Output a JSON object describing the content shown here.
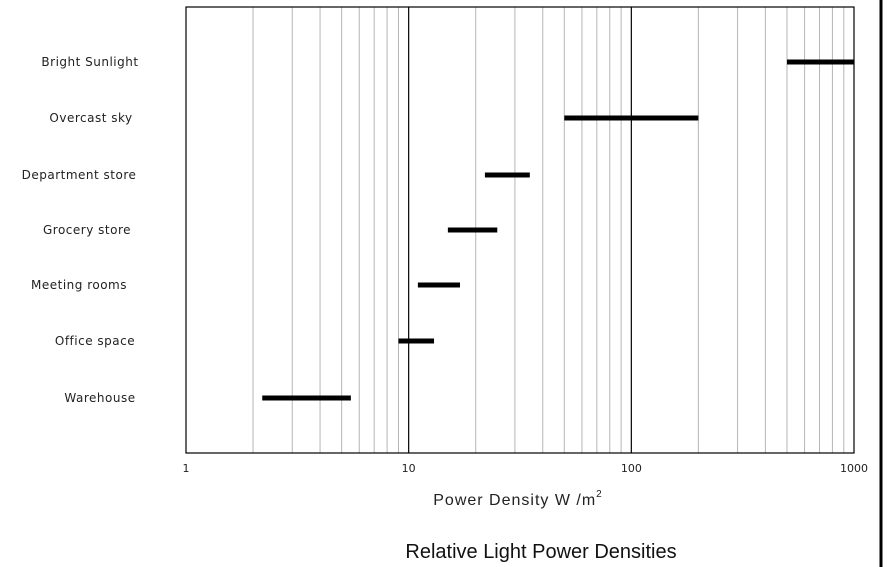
{
  "chart_data": {
    "type": "range-bar",
    "title": "Relative Light Power Densities",
    "xlabel": "Power Density W /m",
    "xlabel_superscript": "2",
    "x_scale": "log",
    "xlim": [
      1,
      1000
    ],
    "x_tick_labels": [
      "1",
      "10",
      "100",
      "1000"
    ],
    "x_tick_values": [
      1,
      10,
      100,
      1000
    ],
    "grid": "vertical, minor gridlines on log decades",
    "series_color": "#000000",
    "categories": [
      "Bright Sunlight",
      "Overcast sky",
      "Department store",
      "Grocery store",
      "Meeting rooms",
      "Office space",
      "Warehouse"
    ],
    "ranges": [
      {
        "label": "Bright Sunlight",
        "low": 500,
        "high": 1000
      },
      {
        "label": "Overcast sky",
        "low": 50,
        "high": 200
      },
      {
        "label": "Department store",
        "low": 22,
        "high": 35
      },
      {
        "label": "Grocery store",
        "low": 15,
        "high": 25
      },
      {
        "label": "Meeting rooms",
        "low": 11,
        "high": 17
      },
      {
        "label": "Office space",
        "low": 9,
        "high": 13
      },
      {
        "label": "Warehouse",
        "low": 2.2,
        "high": 5.5
      }
    ]
  }
}
